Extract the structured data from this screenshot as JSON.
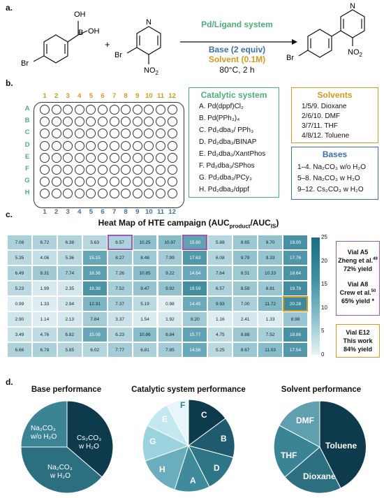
{
  "panel_labels": {
    "a": "a.",
    "b": "b.",
    "c": "c.",
    "d": "d."
  },
  "reaction": {
    "reagent1_atoms": {
      "oh1": "OH",
      "b": "B",
      "oh2": "OH",
      "br": "Br"
    },
    "plus": "+",
    "reagent2_atoms": {
      "n": "N",
      "br": "Br",
      "no2": "NO"
    },
    "conditions": {
      "catalyst": "Pd/Ligand system",
      "base": "Base (2 equiv)",
      "solvent": "Solvent (0.1M)",
      "temp_time": "80°C, 2 h"
    },
    "product_atoms": {
      "n": "N",
      "br": "Br",
      "no2": "NO"
    },
    "subscript_2": "2"
  },
  "plate": {
    "columns": [
      "1",
      "2",
      "3",
      "4",
      "5",
      "6",
      "7",
      "8",
      "9",
      "10",
      "11",
      "12"
    ],
    "rows": [
      "A",
      "B",
      "C",
      "D",
      "E",
      "F",
      "G",
      "H"
    ]
  },
  "catalytic_box": {
    "title": "Catalytic system",
    "items": [
      "A. Pd(dppf)Cl₂",
      "B. Pd(PPh₃)₄",
      "C. Pd₂dba₃/ PPh₃",
      "D. Pd₂dba₃/BINAP",
      "E. Pd₂dba₃/XantPhos",
      "F. Pd₂dba₃/SPhos",
      "G. Pd₂dba₃/PCy₃",
      "H. Pd₂dba₃/dppf"
    ]
  },
  "solvents_box": {
    "title": "Solvents",
    "items": [
      "1/5/9. Dioxane",
      "2/6/10. DMF",
      "3/7/11. THF",
      "4/8/12. Toluene"
    ]
  },
  "bases_box": {
    "title": "Bases",
    "items": [
      "1–4. Na₂CO₃ w/o H₂O",
      "5–8. Na₂CO₃ w H₂O",
      "9–12. Cs₂CO₃ w H₂O"
    ]
  },
  "heatmap": {
    "title": "Heat Map of HTE campaign (AUCproduct/AUCIS)",
    "title_parts": {
      "pre": "Heat Map of HTE campaign (AUC",
      "sub1": "product",
      "mid": "/AUC",
      "sub2": "IS",
      "post": ")"
    },
    "values": [
      [
        7.08,
        6.72,
        6.38,
        5.63,
        6.57,
        10.25,
        10.97,
        15.8,
        5.88,
        8.65,
        9.7,
        19.0
      ],
      [
        5.35,
        4.06,
        5.36,
        15.15,
        8.27,
        8.48,
        7.99,
        17.63,
        6.08,
        9.79,
        9.33,
        17.76
      ],
      [
        6.49,
        8.31,
        7.74,
        16.36,
        7.26,
        10.85,
        9.22,
        14.64,
        7.64,
        8.51,
        10.33,
        18.64
      ],
      [
        5.23,
        1.99,
        2.35,
        18.38,
        7.52,
        9.47,
        9.92,
        19.59,
        6.57,
        8.59,
        8.81,
        19.78
      ],
      [
        0.99,
        1.33,
        2.94,
        12.31,
        7.37,
        5.19,
        0.98,
        14.45,
        9.93,
        7.0,
        11.72,
        20.28
      ],
      [
        2.9,
        1.14,
        2.13,
        7.84,
        3.37,
        1.54,
        1.92,
        8.2,
        1.16,
        2.41,
        1.33,
        8.98
      ],
      [
        3.49,
        4.76,
        6.82,
        15.08,
        6.23,
        10.86,
        8.84,
        15.77,
        4.75,
        8.88,
        7.52,
        18.86
      ],
      [
        6.66,
        6.78,
        5.85,
        6.02,
        7.77,
        6.81,
        7.85,
        14.56,
        5.25,
        8.67,
        11.03,
        17.54
      ]
    ],
    "value_labels": [
      [
        "7.08",
        "6.72",
        "6.38",
        "5.63",
        "6.57",
        "10.25",
        "10.97",
        "15.80",
        "5.88",
        "8.65",
        "9.70",
        "19.00"
      ],
      [
        "5.35",
        "4.06",
        "5.36",
        "15.15",
        "8.27",
        "8.48",
        "7.99",
        "17.63",
        "6.08",
        "9.79",
        "9.33",
        "17.76"
      ],
      [
        "6.49",
        "8.31",
        "7.74",
        "16.36",
        "7.26",
        "10.85",
        "9.22",
        "14.64",
        "7.64",
        "8.51",
        "10.33",
        "18.64"
      ],
      [
        "5.23",
        "1.99",
        "2.35",
        "18.38",
        "7.52",
        "9.47",
        "9.92",
        "19.59",
        "6.57",
        "8.59",
        "8.81",
        "19.78"
      ],
      [
        "0.99",
        "1.33",
        "2.94",
        "12.31",
        "7.37",
        "5.19",
        "0.98",
        "14.45",
        "9.93",
        "7.00",
        "11.72",
        "20.28"
      ],
      [
        "2.90",
        "1.14",
        "2.13",
        "7.84",
        "3.37",
        "1.54",
        "1.92",
        "8.20",
        "1.16",
        "2.41",
        "1.33",
        "8.98"
      ],
      [
        "3.49",
        "4.76",
        "6.82",
        "15.08",
        "6.23",
        "10.86",
        "8.84",
        "15.77",
        "4.75",
        "8.88",
        "7.52",
        "18.86"
      ],
      [
        "6.66",
        "6.78",
        "5.85",
        "6.02",
        "7.77",
        "6.81",
        "7.85",
        "14.56",
        "5.25",
        "8.67",
        "11.03",
        "17.54"
      ]
    ],
    "colorbar_ticks": [
      "25",
      "20",
      "15",
      "10",
      "5",
      "0"
    ],
    "color_range": [
      0,
      25
    ],
    "highlight_purple": [
      [
        0,
        4
      ],
      [
        0,
        7
      ]
    ],
    "highlight_gold": [
      [
        4,
        11
      ]
    ]
  },
  "vial_boxes": {
    "box1": {
      "l1": "Vial A5",
      "l2a": "Zheng et al.",
      "l2sup": "49",
      "l3": "72% yield",
      "l4": "Vial A8",
      "l5a": "Crew et al.",
      "l5sup": "50",
      "l6": "65% yield *"
    },
    "box2": {
      "l1": "Vial E12",
      "l2": "This work",
      "l3": "84% yield"
    }
  },
  "pies": {
    "base": {
      "title": "Base performance",
      "labels": {
        "na1a": "Na₂CO₃",
        "na1b": "w/o H₂O",
        "cs1": "Cs₂CO₃",
        "cs2": "w H₂O",
        "na2a": "Na₂CO₃",
        "na2b": "w H₂O"
      }
    },
    "cat": {
      "title": "Catalytic system performance",
      "labels": [
        "C",
        "B",
        "D",
        "A",
        "H",
        "G",
        "E",
        "F"
      ]
    },
    "solv": {
      "title": "Solvent performance",
      "labels": [
        "Toluene",
        "Dioxane",
        "THF",
        "DMF"
      ]
    }
  },
  "colors": {
    "green": "#4caf7a",
    "blue": "#3e6fb0",
    "gold": "#d29b1f",
    "purple": "#9b59b6",
    "teal_dark": "#0d3b4c"
  }
}
